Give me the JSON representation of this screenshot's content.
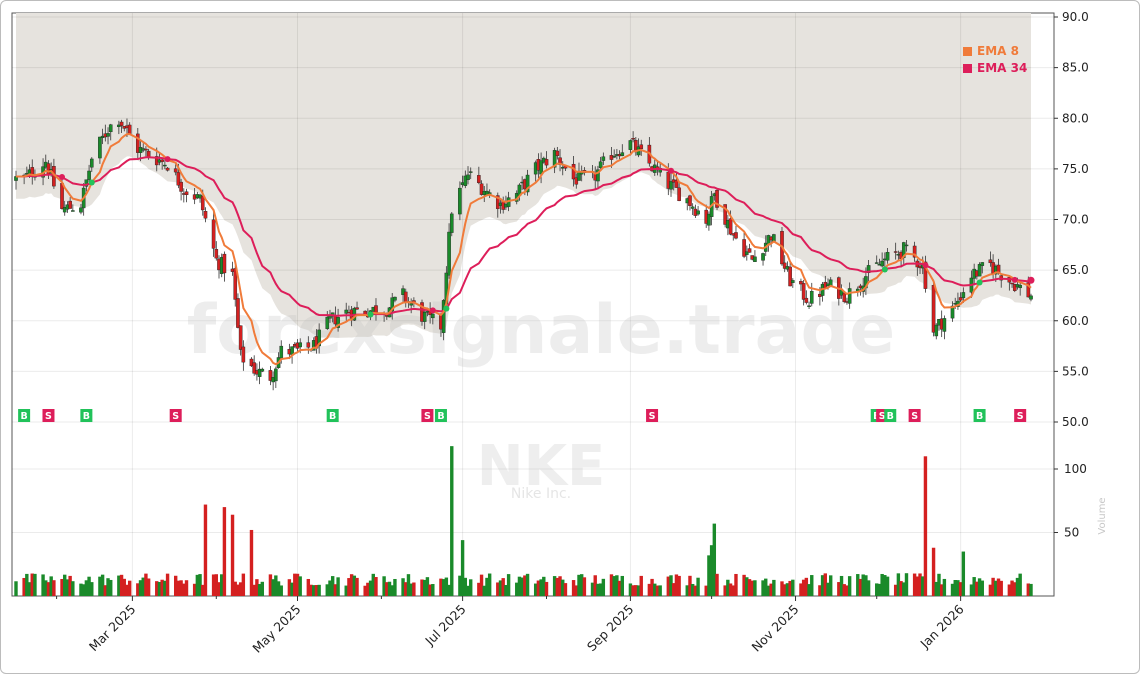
{
  "chart_data": {
    "type": "candlestick",
    "watermark": "forexsignale.trade",
    "ticker": "NKE",
    "company": "Nike Inc.",
    "y_ticks": [
      50.0,
      55.0,
      60.0,
      65.0,
      70.0,
      75.0,
      80.0,
      85.0,
      90.0
    ],
    "y_tick_labels": [
      "50.0",
      "55.0",
      "60.0",
      "65.0",
      "70.0",
      "75.0",
      "80.0",
      "85.0",
      "90.0"
    ],
    "ylim": [
      50.0,
      90.0
    ],
    "volume_ticks": [
      50,
      100
    ],
    "volume_tick_labels": [
      "50",
      "100"
    ],
    "volume_ylabel": "Volume",
    "x_tick_labels": [
      "Mar 2025",
      "May 2025",
      "Jul 2025",
      "Sep 2025",
      "Nov 2025",
      "Jan 2026"
    ],
    "x_tick_dates": [
      "2025-03-01",
      "2025-05-01",
      "2025-07-01",
      "2025-09-01",
      "2025-11-01",
      "2026-01-01"
    ],
    "x_range": [
      "2025-01-17",
      "2026-01-27"
    ],
    "legend_position": "top-right",
    "legend": [
      {
        "name": "EMA 8",
        "color": "#f07b3a"
      },
      {
        "name": "EMA 34",
        "color": "#dd1e5a"
      }
    ],
    "close_series": [
      [
        "2025-01-20",
        74.0
      ],
      [
        "2025-01-28",
        75.8
      ],
      [
        "2025-02-03",
        71.0
      ],
      [
        "2025-02-10",
        71.5
      ],
      [
        "2025-02-14",
        76.0
      ],
      [
        "2025-02-20",
        79.0
      ],
      [
        "2025-02-24",
        80.0
      ],
      [
        "2025-03-03",
        77.0
      ],
      [
        "2025-03-10",
        76.0
      ],
      [
        "2025-03-14",
        75.5
      ],
      [
        "2025-03-20",
        73.0
      ],
      [
        "2025-03-26",
        72.0
      ],
      [
        "2025-04-01",
        66.0
      ],
      [
        "2025-04-07",
        64.5
      ],
      [
        "2025-04-10",
        56.5
      ],
      [
        "2025-04-16",
        55.0
      ],
      [
        "2025-04-21",
        54.5
      ],
      [
        "2025-04-25",
        57.0
      ],
      [
        "2025-05-01",
        57.0
      ],
      [
        "2025-05-07",
        57.5
      ],
      [
        "2025-05-13",
        60.0
      ],
      [
        "2025-05-20",
        61.0
      ],
      [
        "2025-05-27",
        61.0
      ],
      [
        "2025-06-03",
        61.2
      ],
      [
        "2025-06-09",
        62.5
      ],
      [
        "2025-06-16",
        60.5
      ],
      [
        "2025-06-23",
        59.5
      ],
      [
        "2025-06-27",
        71.0
      ],
      [
        "2025-07-03",
        74.5
      ],
      [
        "2025-07-09",
        73.0
      ],
      [
        "2025-07-15",
        71.5
      ],
      [
        "2025-07-21",
        72.5
      ],
      [
        "2025-07-28",
        75.0
      ],
      [
        "2025-08-04",
        76.5
      ],
      [
        "2025-08-11",
        74.0
      ],
      [
        "2025-08-18",
        74.0
      ],
      [
        "2025-08-25",
        76.5
      ],
      [
        "2025-09-01",
        77.5
      ],
      [
        "2025-09-08",
        75.5
      ],
      [
        "2025-09-15",
        73.5
      ],
      [
        "2025-09-22",
        72.0
      ],
      [
        "2025-09-29",
        70.0
      ],
      [
        "2025-10-02",
        72.5
      ],
      [
        "2025-10-09",
        68.5
      ],
      [
        "2025-10-16",
        66.0
      ],
      [
        "2025-10-23",
        68.5
      ],
      [
        "2025-10-30",
        64.0
      ],
      [
        "2025-11-06",
        62.0
      ],
      [
        "2025-11-13",
        63.5
      ],
      [
        "2025-11-20",
        62.5
      ],
      [
        "2025-11-27",
        64.5
      ],
      [
        "2025-12-04",
        66.0
      ],
      [
        "2025-12-11",
        67.0
      ],
      [
        "2025-12-18",
        65.5
      ],
      [
        "2025-12-22",
        59.0
      ],
      [
        "2025-12-30",
        61.5
      ],
      [
        "2026-01-05",
        64.5
      ],
      [
        "2026-01-12",
        65.5
      ],
      [
        "2026-01-19",
        64.0
      ],
      [
        "2026-01-27",
        62.5
      ]
    ],
    "ema8_last": 64.0,
    "ema34_last": 64.0,
    "signals": [
      {
        "date": "2025-01-20",
        "type": "B"
      },
      {
        "date": "2025-01-29",
        "type": "S"
      },
      {
        "date": "2025-02-12",
        "type": "B"
      },
      {
        "date": "2025-03-17",
        "type": "S"
      },
      {
        "date": "2025-05-14",
        "type": "B"
      },
      {
        "date": "2025-06-18",
        "type": "S"
      },
      {
        "date": "2025-06-23",
        "type": "B"
      },
      {
        "date": "2025-09-09",
        "type": "S"
      },
      {
        "date": "2025-12-01",
        "type": "B"
      },
      {
        "date": "2025-12-03",
        "type": "S"
      },
      {
        "date": "2025-12-06",
        "type": "B"
      },
      {
        "date": "2025-12-15",
        "type": "S"
      },
      {
        "date": "2026-01-08",
        "type": "B"
      },
      {
        "date": "2026-01-23",
        "type": "S"
      }
    ],
    "colors": {
      "up": "#1a8a2a",
      "down": "#d42020",
      "buy": "#21c25a",
      "sell": "#dd1e5a",
      "shade": "#e6e3de"
    }
  }
}
